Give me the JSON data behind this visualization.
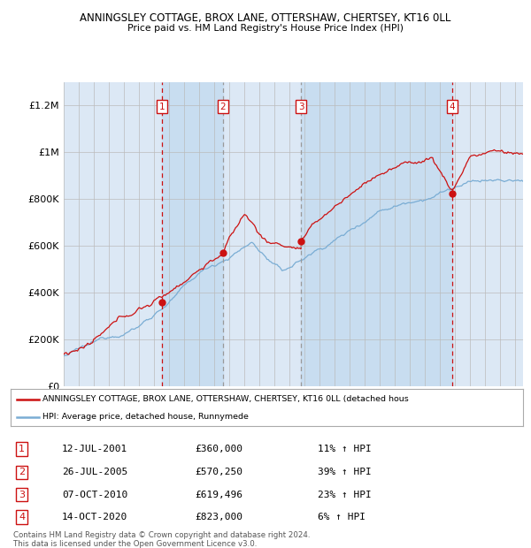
{
  "title1": "ANNINGSLEY COTTAGE, BROX LANE, OTTERSHAW, CHERTSEY, KT16 0LL",
  "title2": "Price paid vs. HM Land Registry's House Price Index (HPI)",
  "ylabel_ticks": [
    "£0",
    "£200K",
    "£400K",
    "£600K",
    "£800K",
    "£1M",
    "£1.2M"
  ],
  "ytick_values": [
    0,
    200000,
    400000,
    600000,
    800000,
    1000000,
    1200000
  ],
  "ylim": [
    0,
    1300000
  ],
  "xlim_start": 1995.0,
  "xlim_end": 2025.5,
  "purchases": [
    {
      "num": 1,
      "date": "12-JUL-2001",
      "price": 360000,
      "year": 2001.54,
      "pct": "11%",
      "dir": "↑",
      "vline": "red"
    },
    {
      "num": 2,
      "date": "26-JUL-2005",
      "price": 570250,
      "year": 2005.56,
      "pct": "39%",
      "dir": "↑",
      "vline": "gray"
    },
    {
      "num": 3,
      "date": "07-OCT-2010",
      "price": 619496,
      "year": 2010.77,
      "pct": "23%",
      "dir": "↑",
      "vline": "gray"
    },
    {
      "num": 4,
      "date": "14-OCT-2020",
      "price": 823000,
      "year": 2020.79,
      "pct": "6%",
      "dir": "↑",
      "vline": "red"
    }
  ],
  "legend_label_red": "ANNINGSLEY COTTAGE, BROX LANE, OTTERSHAW, CHERTSEY, KT16 0LL (detached hous",
  "legend_label_blue": "HPI: Average price, detached house, Runnymede",
  "footer1": "Contains HM Land Registry data © Crown copyright and database right 2024.",
  "footer2": "This data is licensed under the Open Government Licence v3.0.",
  "bg_color": "#dce8f5",
  "plot_bg": "#ffffff",
  "red_color": "#cc1111",
  "blue_color": "#7aadd4",
  "grid_color": "#bbbbbb",
  "purchase_box_color": "#cc1111",
  "shade_color": "#c8ddf0",
  "fig_width": 6.0,
  "fig_height": 6.2
}
